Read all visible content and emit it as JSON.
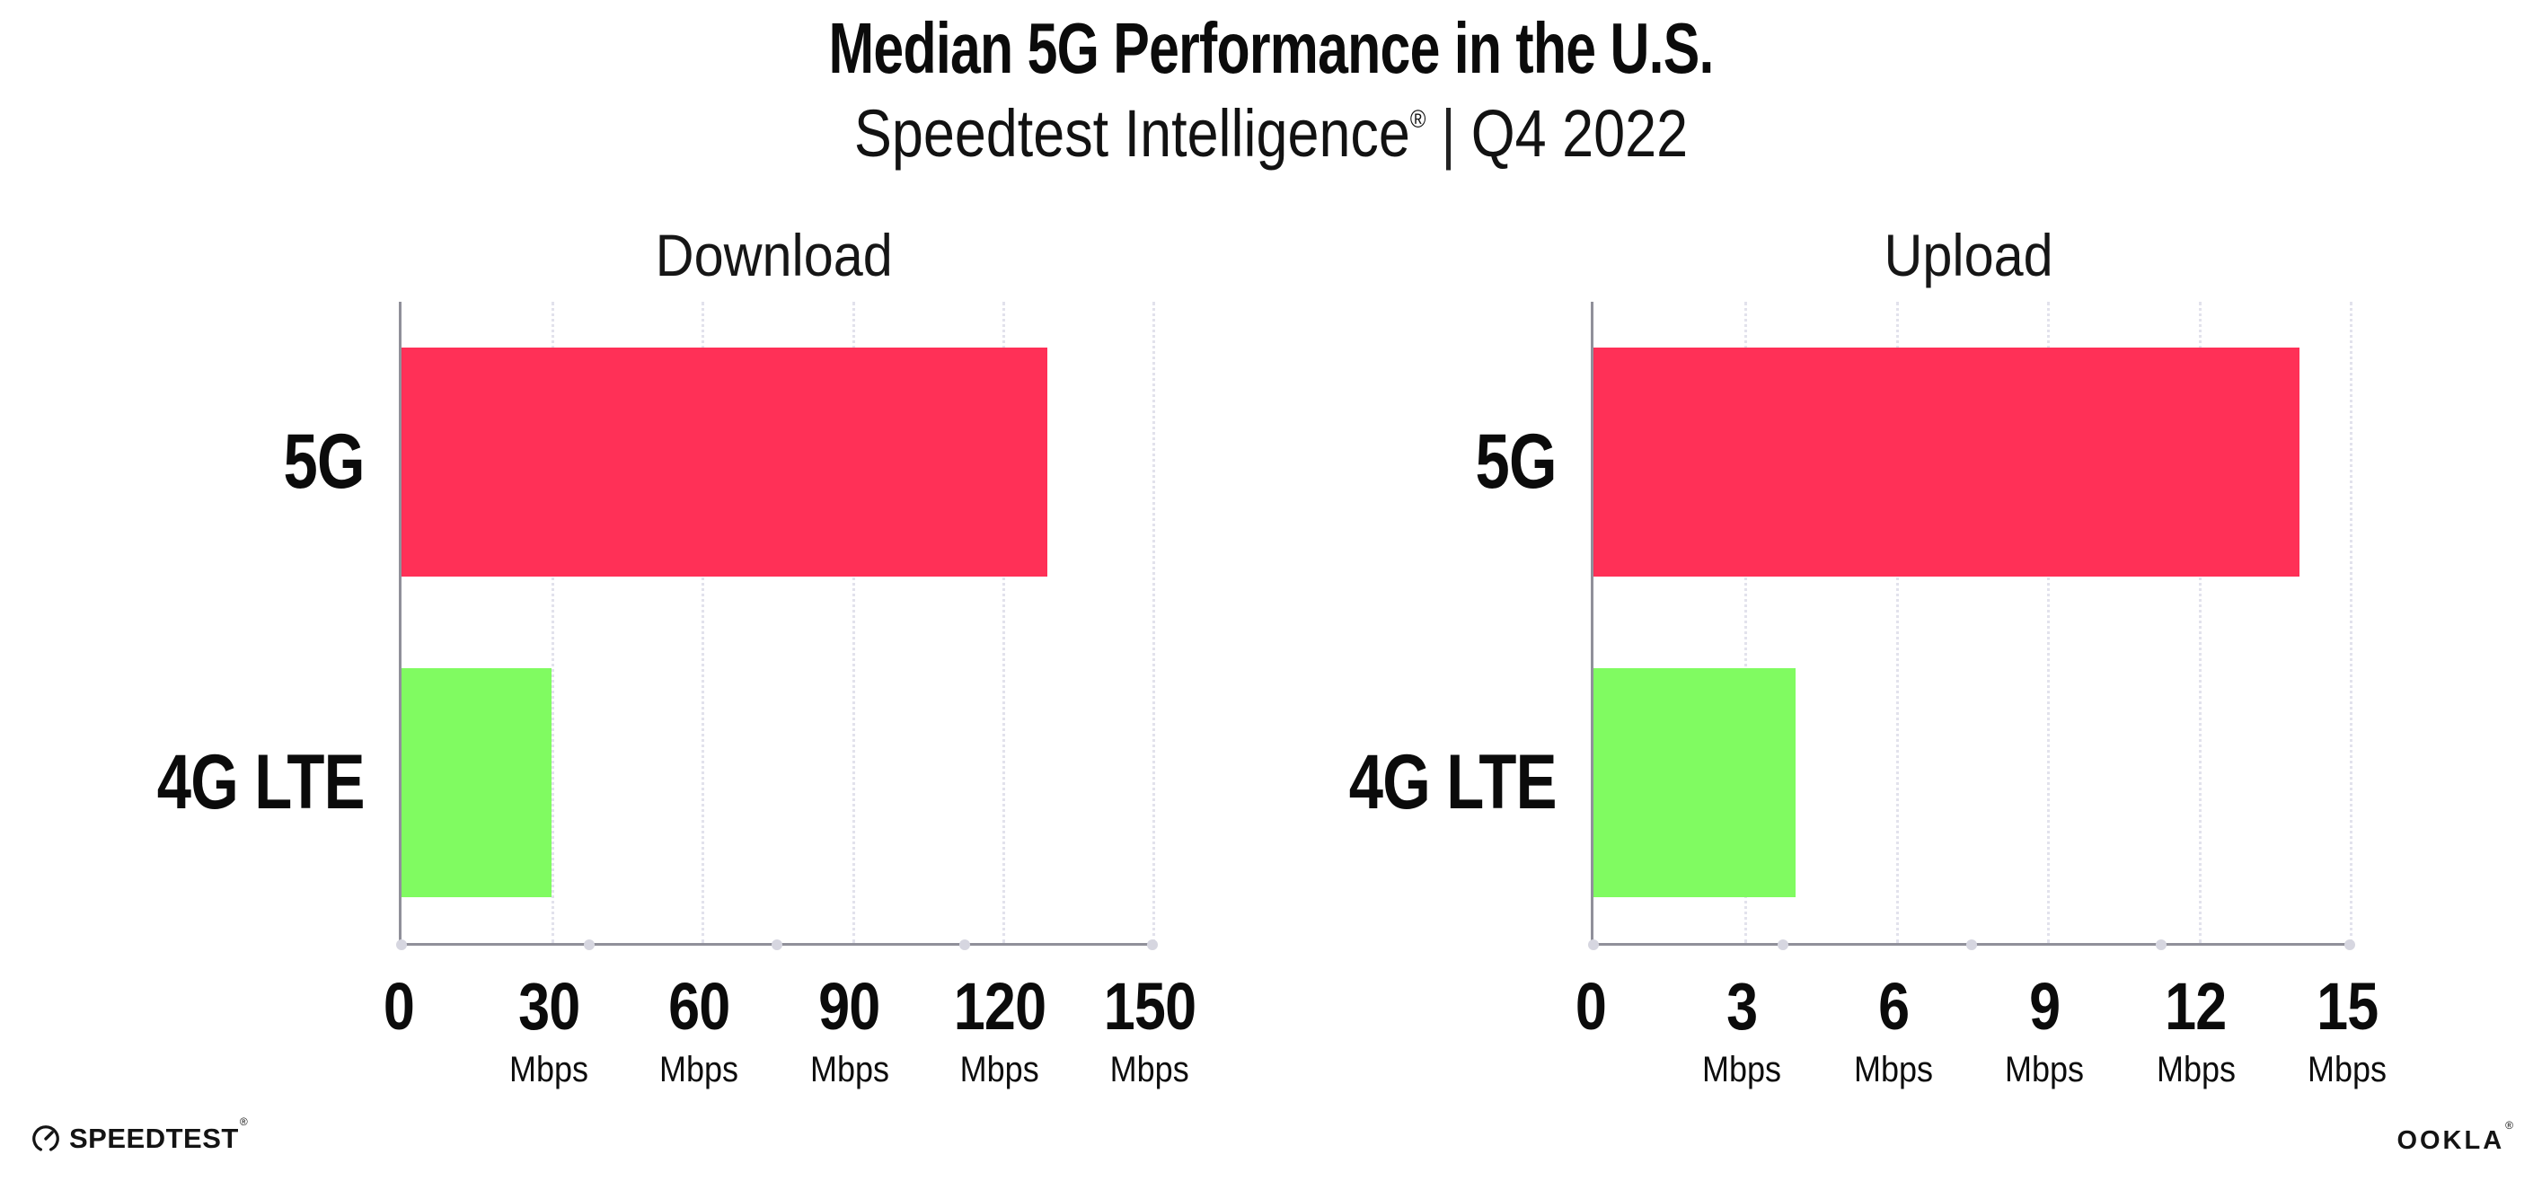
{
  "header": {
    "title": "Median 5G Performance in the U.S.",
    "subtitle_brand": "Speedtest Intelligence",
    "subtitle_mark": "®",
    "subtitle_separator": "|",
    "subtitle_period": "Q4 2022"
  },
  "footer": {
    "speedtest_logo_text": "SPEEDTEST",
    "speedtest_mark": "®",
    "ookla_logo_text": "OOKLA",
    "ookla_mark": "®"
  },
  "colors": {
    "bar_5g": "#FF3057",
    "bar_4g_lte": "#80FB61",
    "axis": "#90909A",
    "gridline": "#E2E2EC",
    "axis_dot": "#D6D6E0",
    "text": "#0B0B0B"
  },
  "chart_data": [
    {
      "type": "bar",
      "orientation": "horizontal",
      "title": "Download",
      "categories": [
        "5G",
        "4G LTE"
      ],
      "values": [
        129,
        30
      ],
      "unit": "Mbps",
      "xlim": [
        0,
        150
      ],
      "xticks": [
        0,
        30,
        60,
        90,
        120,
        150
      ],
      "tick_unit_label": "Mbps",
      "bar_colors": [
        "#FF3057",
        "#80FB61"
      ],
      "grid": "dotted vertical gridlines at each labeled tick",
      "legend": "none"
    },
    {
      "type": "bar",
      "orientation": "horizontal",
      "title": "Upload",
      "categories": [
        "5G",
        "4G LTE"
      ],
      "values": [
        14,
        4
      ],
      "unit": "Mbps",
      "xlim": [
        0,
        15
      ],
      "xticks": [
        0,
        3,
        6,
        9,
        12,
        15
      ],
      "tick_unit_label": "Mbps",
      "bar_colors": [
        "#FF3057",
        "#80FB61"
      ],
      "grid": "dotted vertical gridlines at each labeled tick",
      "legend": "none"
    }
  ]
}
